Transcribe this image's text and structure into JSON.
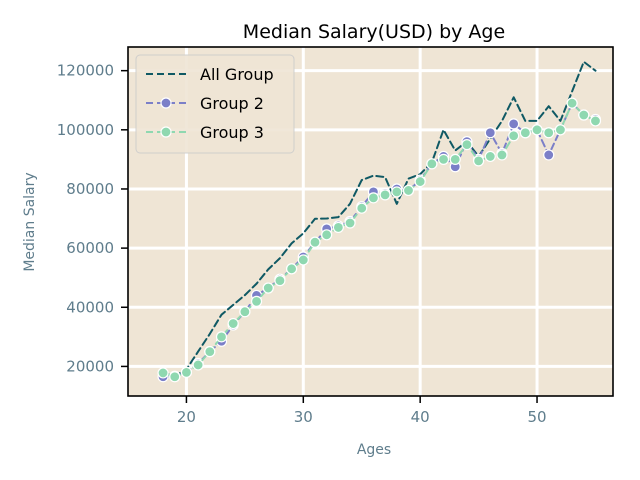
{
  "chart_data": {
    "type": "line",
    "title": "Median Salary(USD) by Age",
    "xlabel": "Ages",
    "ylabel": "Median Salary",
    "xlim": [
      15,
      56.5
    ],
    "ylim": [
      10000,
      128000
    ],
    "xticks": [
      20,
      30,
      40,
      50
    ],
    "yticks": [
      20000,
      40000,
      60000,
      80000,
      100000,
      120000
    ],
    "xtick_labels": [
      "20",
      "30",
      "40",
      "50"
    ],
    "ytick_labels": [
      "20000",
      "40000",
      "60000",
      "80000",
      "100000",
      "120000"
    ],
    "grid": true,
    "legend_position": "top-left",
    "x": [
      18,
      19,
      20,
      21,
      22,
      23,
      24,
      25,
      26,
      27,
      28,
      29,
      30,
      31,
      32,
      33,
      34,
      35,
      36,
      37,
      38,
      39,
      40,
      41,
      42,
      43,
      44,
      45,
      46,
      47,
      48,
      49,
      50,
      51,
      52,
      53,
      54,
      55
    ],
    "series": [
      {
        "name": "All Group",
        "style": "dashed",
        "marker": "none",
        "color": "#0f5964",
        "values": [
          17800,
          16700,
          19000,
          25000,
          31000,
          37500,
          40800,
          44100,
          48000,
          52800,
          56600,
          61600,
          65000,
          69900,
          70000,
          70500,
          75000,
          83000,
          84500,
          84000,
          75000,
          83500,
          85000,
          89000,
          100000,
          93000,
          96000,
          91000,
          97000,
          103000,
          111000,
          103000,
          103000,
          108000,
          103000,
          113000,
          123000,
          120000
        ]
      },
      {
        "name": "Group 2",
        "style": "dashed",
        "marker": "circle",
        "color": "#7b7fc8",
        "values": [
          16500,
          16700,
          18000,
          21000,
          25000,
          28500,
          34000,
          38500,
          44000,
          46500,
          49500,
          53000,
          57000,
          62000,
          66500,
          67500,
          69000,
          74000,
          79000,
          78500,
          80000,
          79500,
          83000,
          88500,
          91000,
          87500,
          96000,
          90000,
          99000,
          92000,
          102000,
          99000,
          100000,
          91500,
          100000,
          109000,
          105000,
          103500
        ]
      },
      {
        "name": "Group 3",
        "style": "dashed",
        "marker": "circle",
        "color": "#8fd8b0",
        "values": [
          17800,
          16500,
          18000,
          20500,
          25000,
          30000,
          34500,
          38500,
          42000,
          46500,
          49000,
          53000,
          56000,
          62000,
          64500,
          67000,
          68500,
          73500,
          77000,
          78000,
          79000,
          79500,
          82500,
          88500,
          90000,
          90000,
          95000,
          89500,
          91000,
          91500,
          98000,
          99000,
          100000,
          99000,
          100000,
          109000,
          105000,
          103000
        ]
      }
    ]
  },
  "colors": {
    "plot_background": "#efe5d5",
    "grid": "#ffffff",
    "axis": "#000000",
    "tick_text": "#5f7d8c"
  }
}
